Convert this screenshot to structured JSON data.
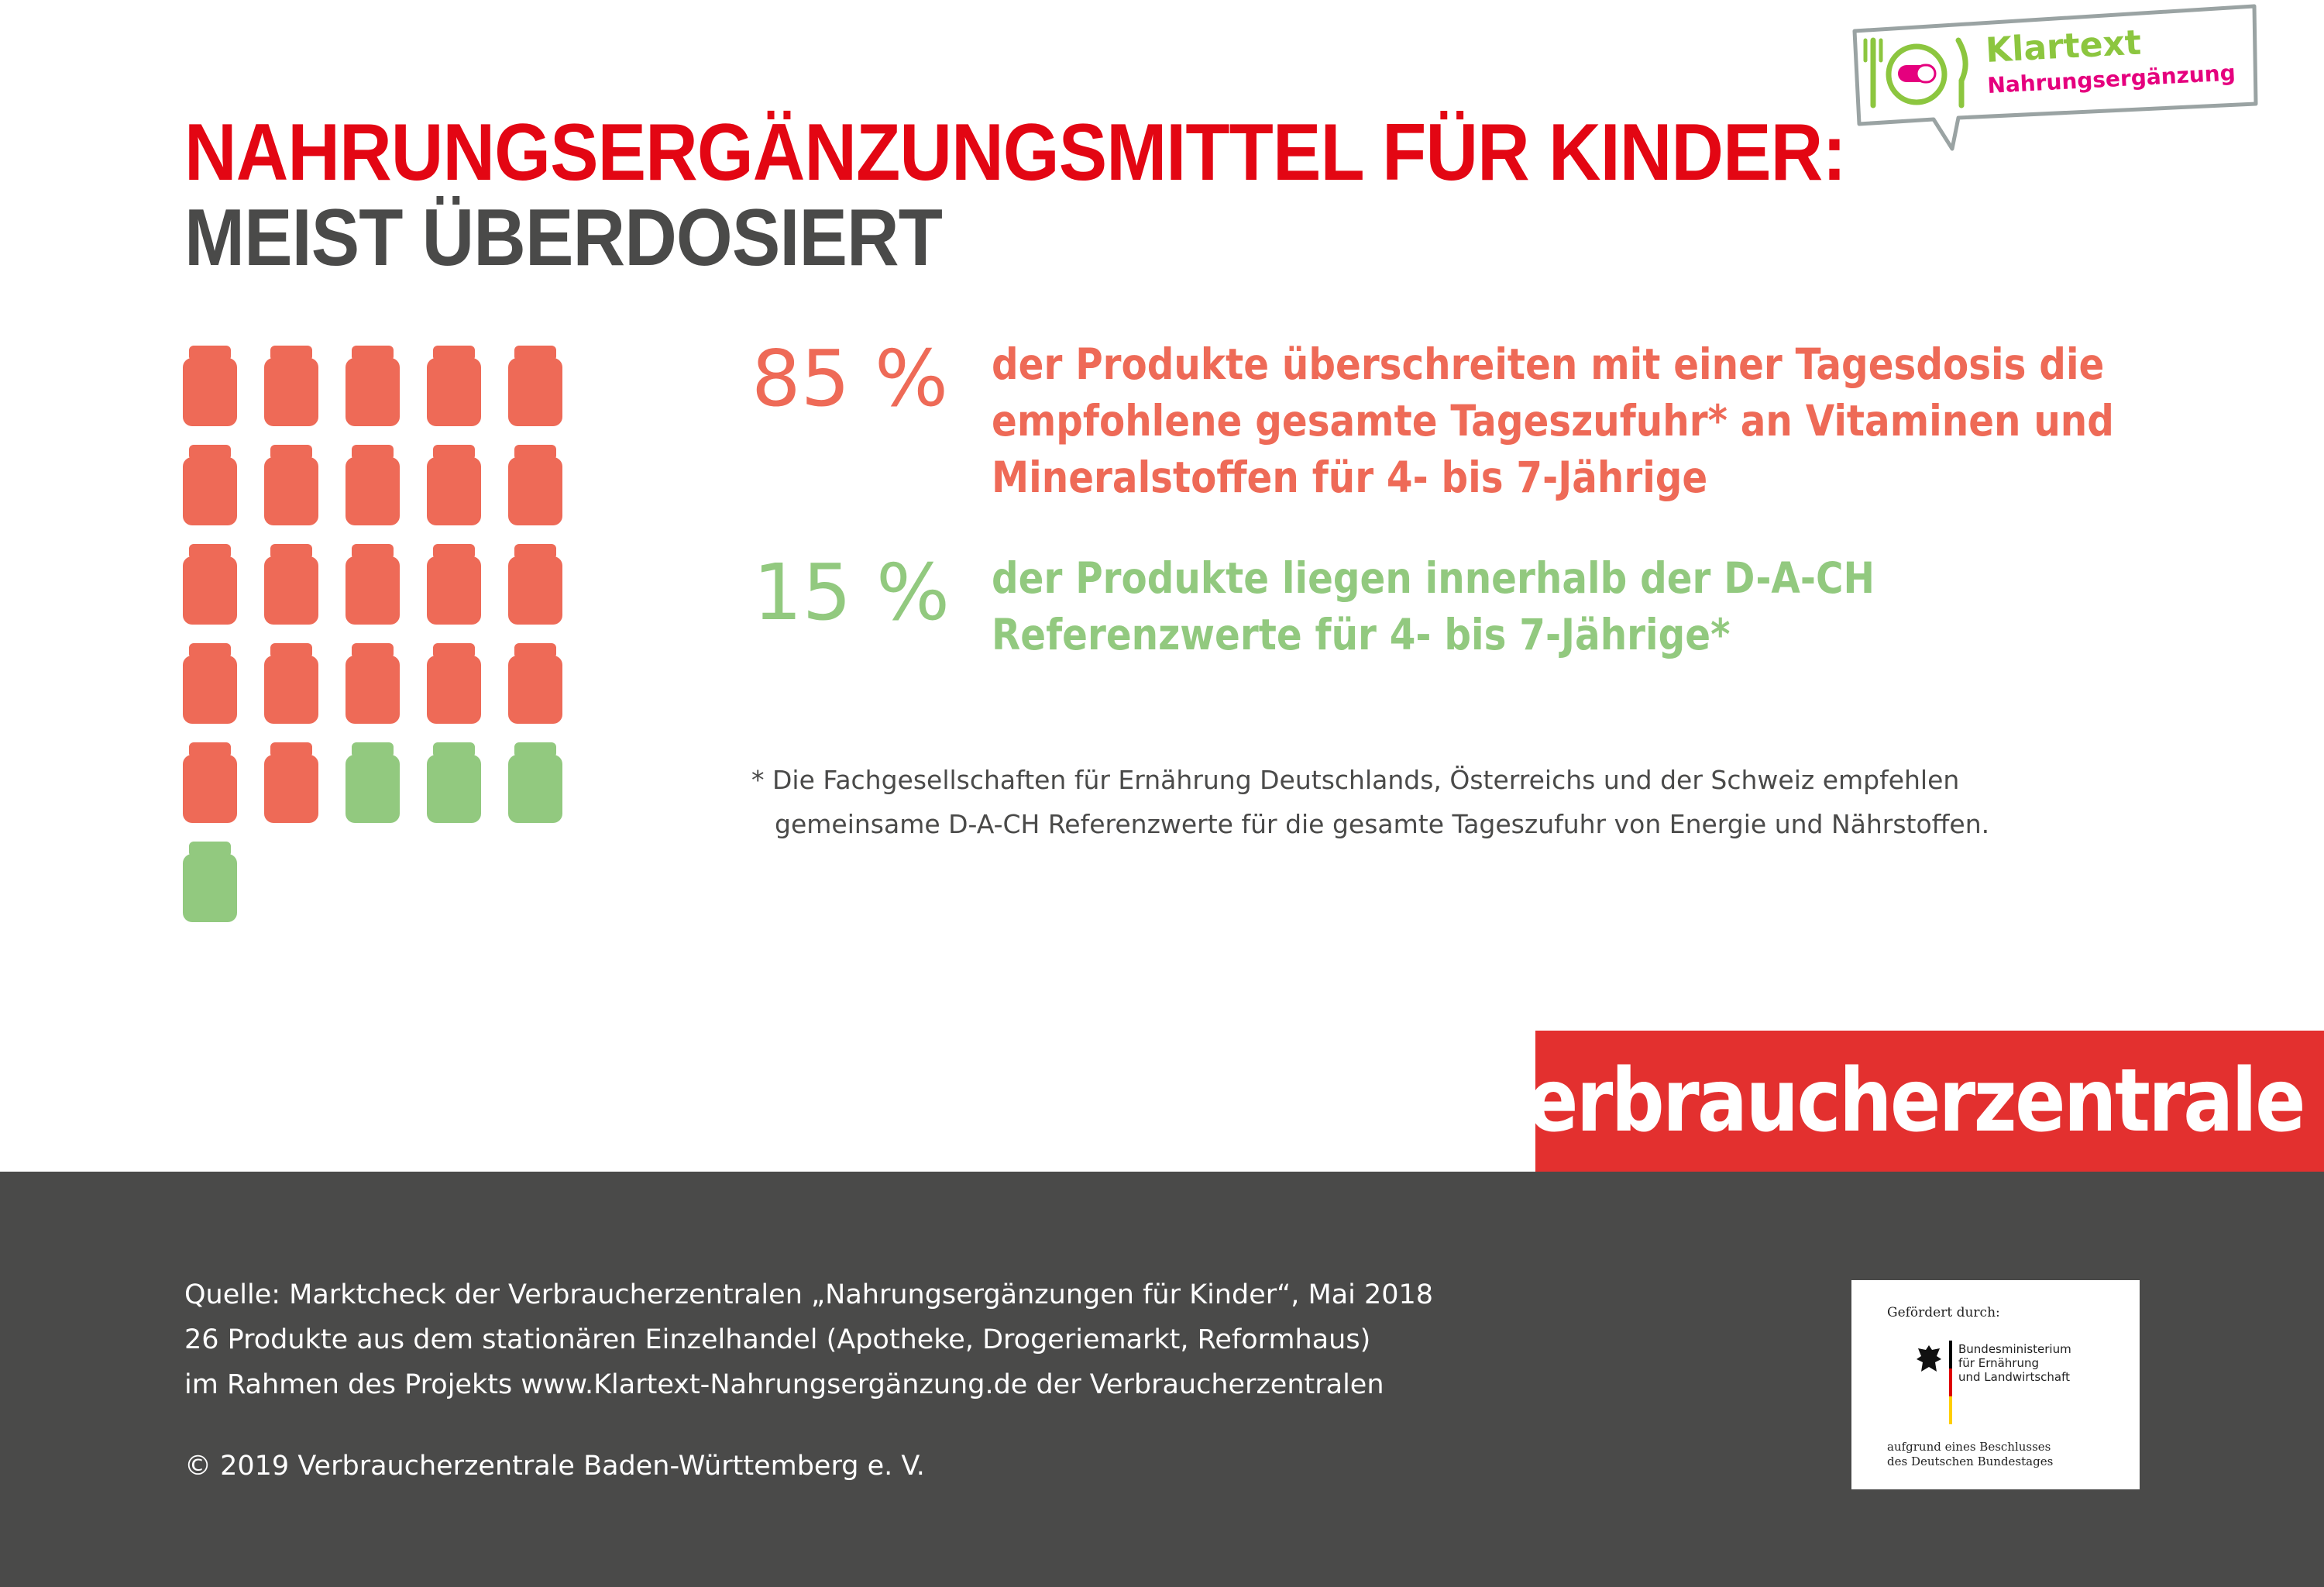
{
  "title": {
    "line1": "NAHRUNGSERGÄNZUNGSMITTEL FÜR KINDER:",
    "line2": "MEIST ÜBERDOSIERT"
  },
  "badge": {
    "line1": "Klartext",
    "line2": "Nahrungsergänzung"
  },
  "colors": {
    "over": "#ee6a57",
    "within": "#92c97f",
    "title_red": "#e30613",
    "title_gray": "#4a4a49",
    "brand_red": "#e3302f",
    "footer_gray": "#4a4a49"
  },
  "chart_data": {
    "type": "pictogram",
    "unit_icon": "jar-icon",
    "total_units": 26,
    "series": [
      {
        "name": "85 %",
        "count": 22,
        "percent": 85,
        "color": "#ee6a57"
      },
      {
        "name": "15 %",
        "count": 4,
        "percent": 15,
        "color": "#92c97f"
      }
    ]
  },
  "stats": [
    {
      "percent": "85 %",
      "lines": [
        "der Produkte überschreiten mit einer Tagesdosis die",
        "empfohlene gesamte Tageszufuhr* an Vitaminen und",
        "Mineralstoffen für 4- bis 7-Jährige"
      ]
    },
    {
      "percent": "15 %",
      "lines": [
        "der Produkte liegen innerhalb der D-A-CH",
        "Referenzwerte für 4- bis 7-Jährige*"
      ]
    }
  ],
  "footnote": {
    "line1": "* Die Fachgesellschaften für Ernährung Deutschlands, Österreichs und der Schweiz empfehlen",
    "line2": "gemeinsame D-A-CH Referenzwerte für die gesamte Tageszufuhr von Energie und Nährstoffen."
  },
  "brand": "verbraucherzentrale",
  "source": {
    "line1": "Quelle: Marktcheck der Verbraucherzentralen „Nahrungsergänzungen für Kinder“, Mai 2018",
    "line2": "26 Produkte aus dem stationären Einzelhandel (Apotheke, Drogeriemarkt, Reformhaus)",
    "line3": "im Rahmen des Projekts www.Klartext-Nahrungsergänzung.de der Verbraucherzentralen"
  },
  "copyright": "© 2019 Verbraucherzentrale Baden-Württemberg e. V.",
  "funding": {
    "label": "Gefördert durch:",
    "ministry": [
      "Bundesministerium",
      "für Ernährung",
      "und Landwirtschaft"
    ],
    "decision": [
      "aufgrund eines Beschlusses",
      "des Deutschen Bundestages"
    ]
  }
}
